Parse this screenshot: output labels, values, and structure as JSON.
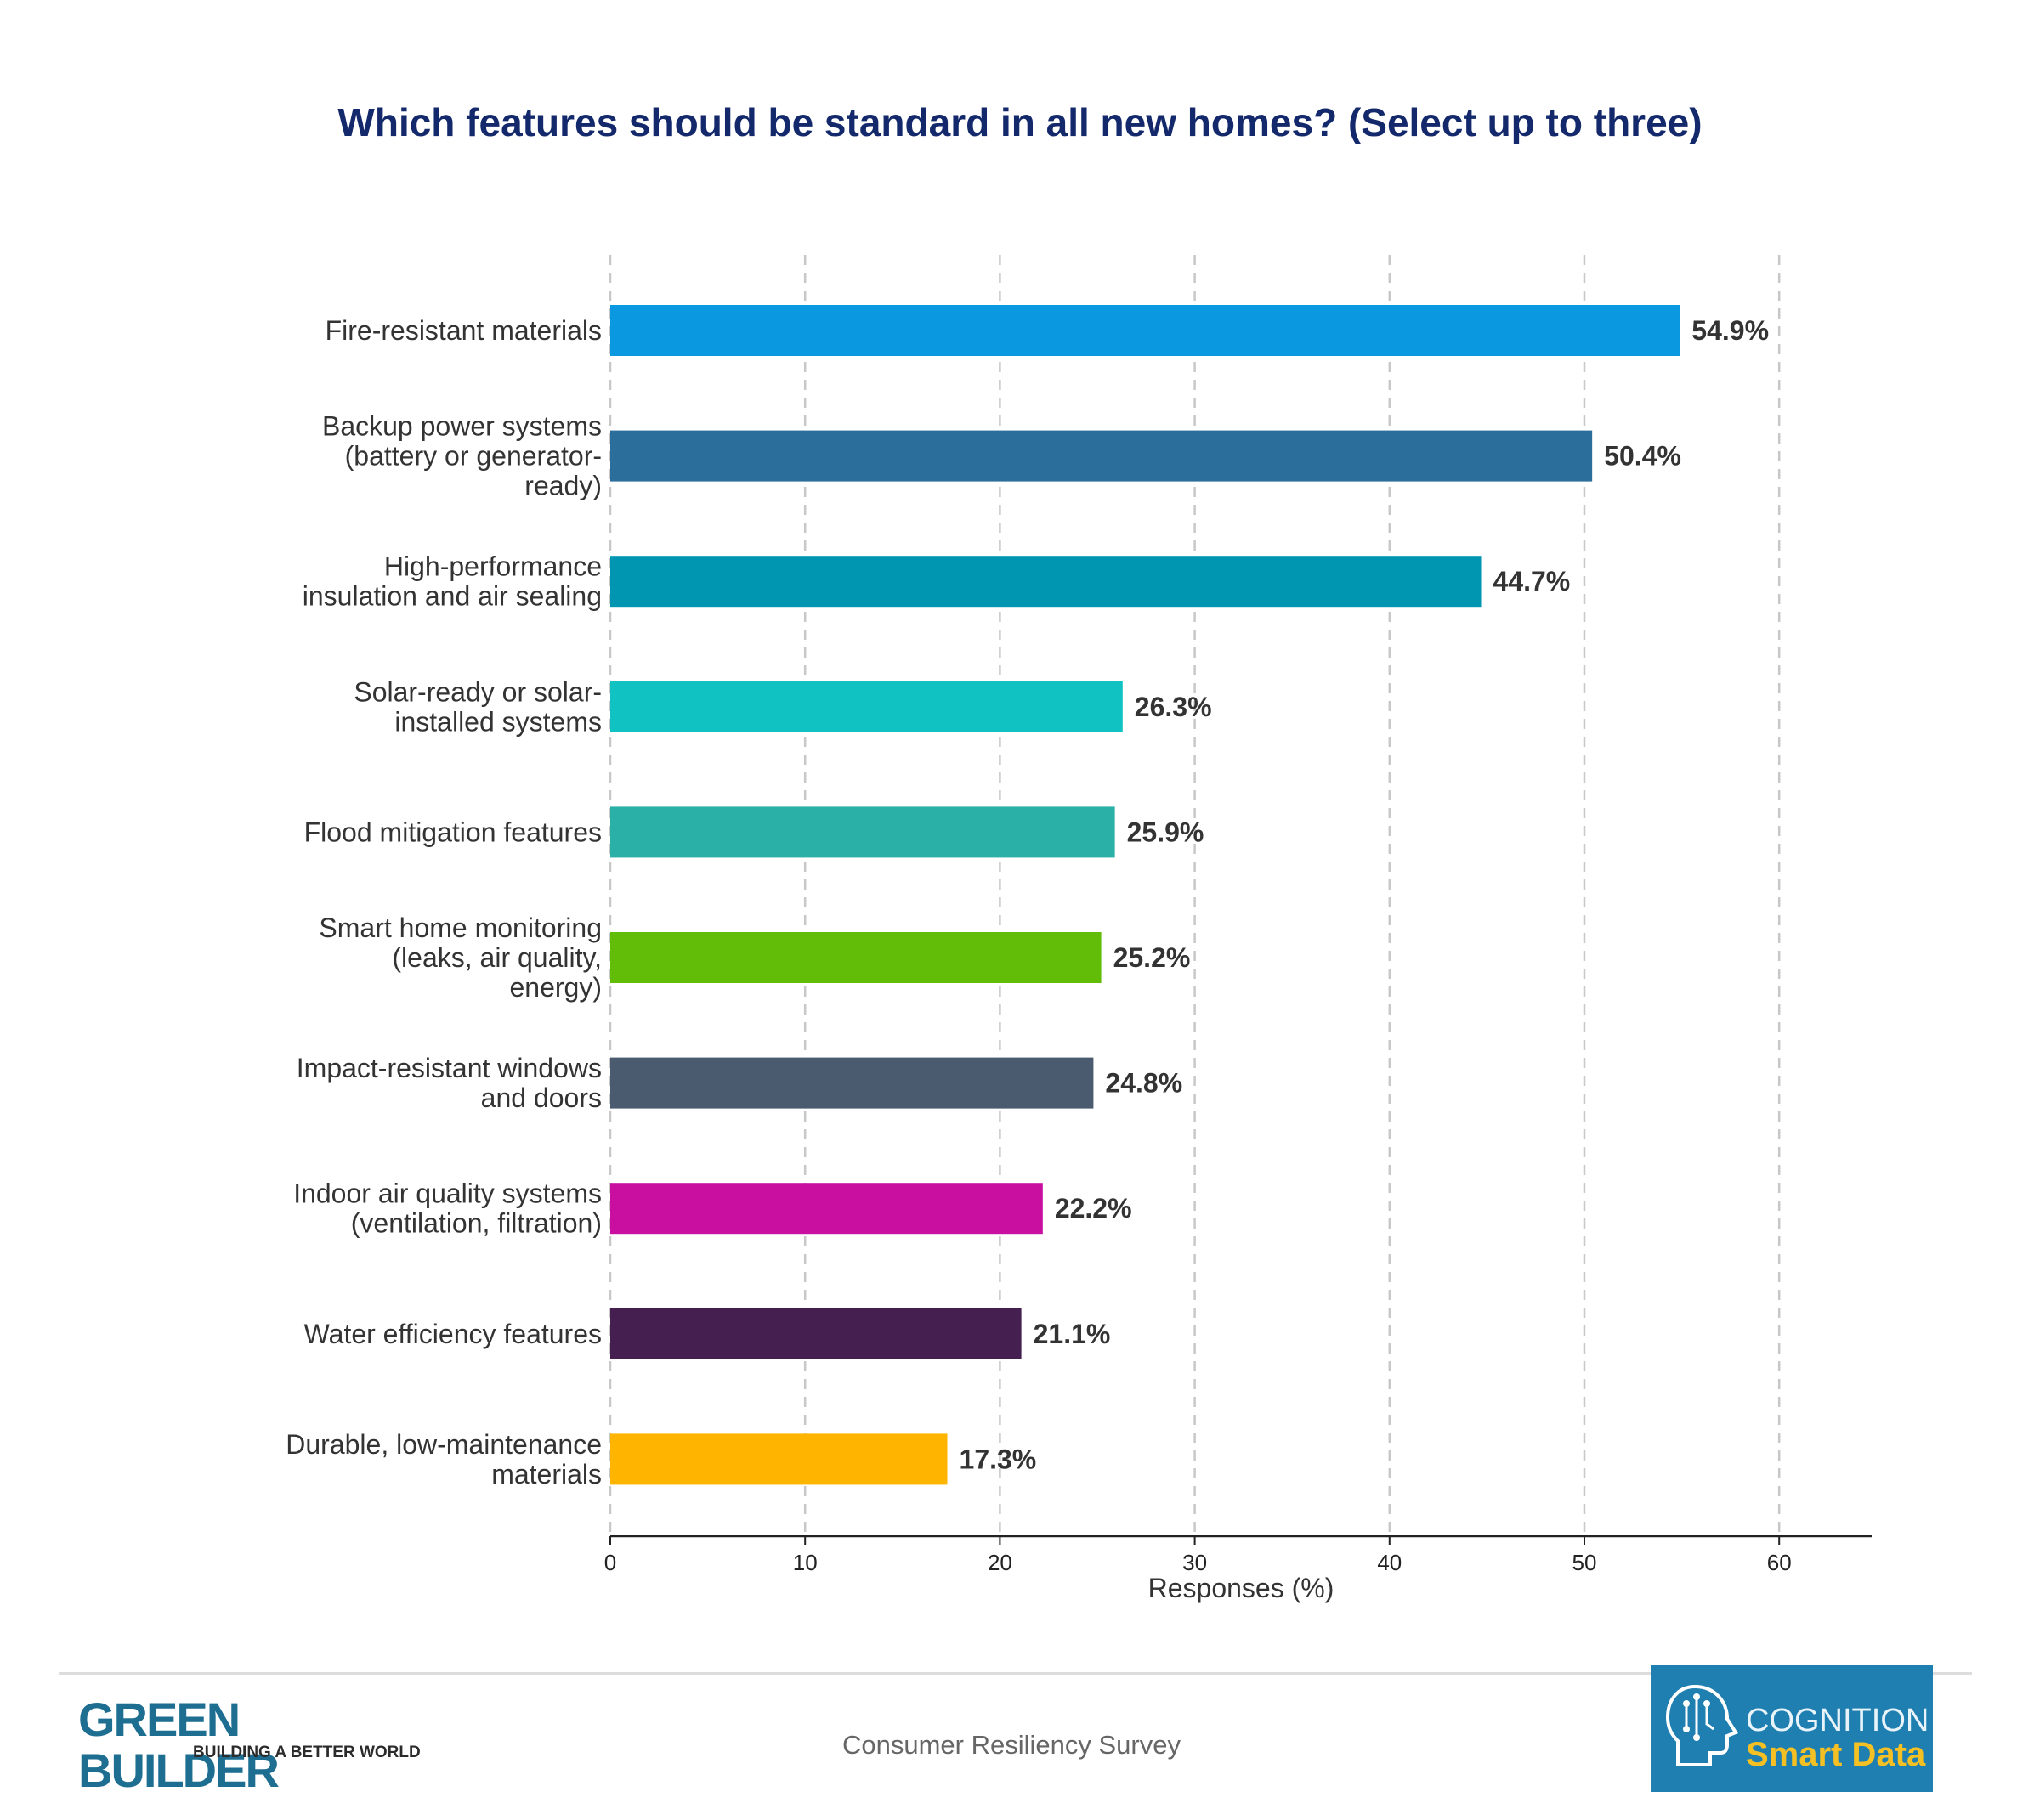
{
  "chart_data": {
    "type": "bar",
    "orientation": "horizontal",
    "title": "Which features should be standard in all new homes? (Select up to three)",
    "xlabel": "Responses (%)",
    "ylabel": "",
    "xlim": [
      0,
      65
    ],
    "xticks": [
      "0",
      "10",
      "20",
      "30",
      "40",
      "50",
      "60"
    ],
    "grid": "vertical dashed",
    "categories": [
      [
        "Fire-resistant materials"
      ],
      [
        "Backup power systems",
        "(battery or generator-",
        "ready)"
      ],
      [
        "High-performance",
        "insulation and air sealing"
      ],
      [
        "Solar-ready or solar-",
        "installed systems"
      ],
      [
        "Flood mitigation features"
      ],
      [
        "Smart home monitoring",
        "(leaks, air quality,",
        "energy)"
      ],
      [
        "Impact-resistant windows",
        "and doors"
      ],
      [
        "Indoor air quality systems",
        "(ventilation, filtration)"
      ],
      [
        "Water efficiency features"
      ],
      [
        "Durable, low-maintenance",
        "materials"
      ]
    ],
    "values": [
      54.9,
      50.4,
      44.7,
      26.3,
      25.9,
      25.2,
      24.8,
      22.2,
      21.1,
      17.3
    ],
    "value_labels": [
      "54.9%",
      "50.4%",
      "44.7%",
      "26.3%",
      "25.9%",
      "25.2%",
      "24.8%",
      "22.2%",
      "21.1%",
      "17.3%"
    ],
    "colors": [
      "#0a99e0",
      "#2c6e9b",
      "#0096b1",
      "#10c2c2",
      "#2ab0a6",
      "#62bd08",
      "#4a5b6f",
      "#c80f9f",
      "#451f4f",
      "#ffb400"
    ]
  },
  "footer": {
    "source": "Consumer Resiliency Survey",
    "left_logo": {
      "name": "GREEN BUILDER",
      "tagline": "BUILDING A BETTER WORLD",
      "color": "#1d6e91"
    },
    "right_logo": {
      "line1": "COGNITION",
      "line2": "Smart Data",
      "bg": "#1f7fb1",
      "accent": "#f5c023"
    }
  }
}
